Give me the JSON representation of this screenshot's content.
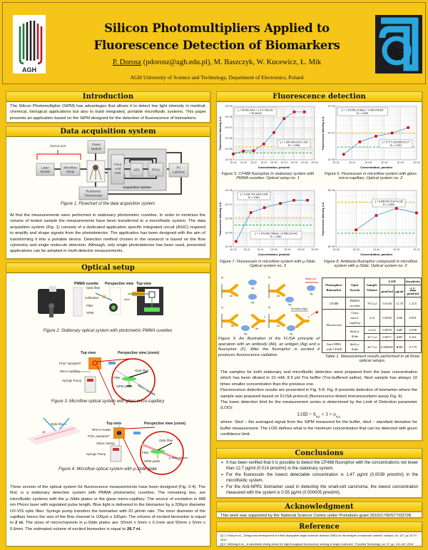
{
  "header": {
    "title_line1": "Silicon Photomultipliers Applied to",
    "title_line2": "Fluorescence Detection of Biomarkers",
    "author_main": "P. Dorosz",
    "authors_rest": " (pdorosz@agh.edu.pl), M. Baszczyk, W. Kucewicz, Ł. Mik",
    "affiliation": "AGH University of Science and Technology, Department of Electronics, Poland",
    "logo_left_text": "AGH"
  },
  "colors": {
    "background": "#f3c316",
    "section_header": "#f5c518",
    "threshold_orange": "#f5b000",
    "threshold_green": "#2fb34a",
    "points": "#e00000"
  },
  "introduction": {
    "title": "Introduction",
    "text": "The Silicon Photomultiplier (SiPM) has advantages that allows it to detect low light intensity in medical, chemical, biological applications but also to build integrated, portable microfluidic systems. This paper presents an application based on the SiPM designed for the detection of fluorescence of biomarkers."
  },
  "daq": {
    "title": "Data acquisition system",
    "fig": {
      "optical_part": "Optical part",
      "laser": [
        "Laser",
        "Module"
      ],
      "microflow": [
        "Microflow",
        "Setup"
      ],
      "power": [
        "Power",
        "Module"
      ],
      "thermo": [
        "Resistance",
        "Thermometer"
      ],
      "asic": [
        "Front",
        "-end",
        "ASIC"
      ],
      "adc": "ADC",
      "fpga": "FPGA",
      "pc": [
        "PC",
        "LabView"
      ],
      "acq": "Acquisition System"
    },
    "caption": "Figure 1. Flowchart of the data acquisition system",
    "text": "At first the measurements were performed in stationary photometric cuvettes. In order to minimize the volume of tested sample the measurements have been transferred to a microfluidic system. The data acquisition system (Fig. 1) consists of a dedicated application specific integrated circuit (ASIC) required to amplify and shape signals from the photodetector. The application has been designed with the aim of transforming it into a portable device. Detection method chosen in the research is based on the flow cytometry and single molecule detection. Although, only single photodetector has been used, presented applications can be adopted in multi-detector measurements."
  },
  "optical": {
    "title": "Optical setup",
    "fig2": {
      "pmma": "PMMA cuvette",
      "persp": "Perspective view",
      "top": "Top view",
      "fiber": "Optic fiber",
      "collimator": "Collimator",
      "filter": "Filter",
      "sipm": "SiPM",
      "mm": "5mm",
      "caption": "Figure 2. Stationary optical system with photometric PMMA cuvettes"
    },
    "fig3": {
      "top": "Top view",
      "persp": "Perspective view (zoom)",
      "pcb": "PCB \"sandwich\"",
      "capillary": "Micro-capillary",
      "pump": "Syringe Pump",
      "fiber": "Optic fiber",
      "filter": "Filter",
      "sipm": "SiPM pixels",
      "capillary2": "Micro-capillary",
      "caption": "Figure 3. Microflow optical system with glass micro-capillary"
    },
    "fig4": {
      "fibers": "Optic fibers",
      "angle": "45°",
      "top": "Top view",
      "persp": "Perspective view (zoom)",
      "holder": "RPH-2 Holder",
      "pcb": "PCB „sandwich\"",
      "tubing": "Silicon tubing",
      "pump": "Syringe Pump",
      "fiber": "Optic fiber",
      "filter": "Filter",
      "sipm": "SiPM pixels",
      "channel": "µ-Slide channel",
      "caption": "Figure 4. Microflow optical system with µ-Slide plate"
    },
    "text_a": "Three version of the optical system for fluorescence measurements have been designed (Fig. 2-4). The first, is a stationary detection system with PMMA photometric cuvettes. The remaining two, are microfluidic systems with the µ–Slide plates or the glass micro-capillary. The source of excitation is 488 nm Phoxx laser with regulated pulse length. Blue light is delivered to the biomarker by a 200µm diameter UV-VIS optic fiber. Syringe pump transfers the biomarker with 20 µl/min rate. The inner diameter of the capillary hence the size of the flow channel is 100µm x 100µm. The volume of excited biomarker is equal to ",
    "text_b": "2 nl.",
    "text_c": " The sizes of microchannels in µ-Slide plates are: 50mm x 5mm x 0.1mm and 50mm x 5mm x 0.6mm. The estimated volume of excited biomarker is equal to ",
    "text_d": "26.7 nl."
  },
  "fluorescence": {
    "title": "Fluorescence detection",
    "captions": [
      "Figure 5. CF488 fluorophor in stationary system with PMMA cuvettes. Optical setup no. 1",
      "Figure 6. Fluorescein in microflow system with glass micro-capillary. Optical system no. 2",
      "Figure 7. Fluorescein in microflow system with µ-Slide. Optical system no. 3",
      "Figure 8. Antibody-fluorophor compound in microflow system with µ-Slide. Optical system no. 3"
    ],
    "fig9": {
      "a": "a)",
      "b": "b)",
      "c": "c)",
      "d": "d)",
      "ab": "Ab",
      "ag": "Ag",
      "f": "F",
      "wash": "Wash out",
      "excitation": "Excitation light",
      "caption": "Figure 9. An illustration of the FLISA principle of operation with an antibody (Ab), an antigen (Ag) and a fluorophor (F). After the fluorophor is excited it produces fluorescence radiation."
    },
    "table": {
      "headers": [
        "Fluorophor/ Biomarker",
        "Optic System",
        "Sample Volume",
        "LOD",
        "Sensitivity"
      ],
      "lod_sub": [
        "pmol/ml",
        "pg/ml"
      ],
      "sens_sub": [
        "A.U.",
        "pmol/ml"
      ],
      "rows": [
        [
          "CF488",
          "PMMA cuvettes",
          "78.5 µl",
          "0.0140",
          "12.70",
          "1.215"
        ],
        [
          "Fluorescein",
          "Glass micro-capillary",
          "2 nl",
          "0.0040",
          "1.51",
          "0.091"
        ],
        [
          "",
          "ibidi µ-Slide",
          "4.4 nl",
          "0.0039",
          "1.47",
          "0.298"
        ],
        [
          "",
          "",
          "26.7 nl",
          "0.0071",
          "2.67",
          "0.161"
        ],
        [
          "Anti-NPR1 with CF488",
          "ibidi µ-Slide",
          "26.7 nl",
          "0.000005",
          "0.55",
          "0.179"
        ]
      ],
      "caption": "Table 1. Measurement results performed in all three optical setups."
    },
    "text1": "The samples for both stationary and microfluidic detection were prepared from the base concentration which has been diluted in 10 mM, 8.5 pH Tris buffer (Tris-buffered saline). Next sample has always 10 times smaller concentration than the previous one.",
    "text2": "Fluorescence detection results are presented in Fig. 5-8. Fig. 8 presents detection of biomarker where the sample was prepared based on FLISA protocol (fluorescence-linked immunosorbent assay Fig. 9).",
    "text3": "The lower detection limit for the measurement series is determined by the Limit of Detection parameter (LOD):",
    "formula": "LOD = S",
    "formula_sub1": "buf",
    "formula_mid": " + 3 × σ",
    "formula_sub2": "buf",
    "text4": "where: Sbuf – the averaged signal from the SiPM measured for the buffer, σbuf – standard deviation for buffer measurement. The LOD defines what is the minimum concentration that can be detected with given confidence limit."
  },
  "conclusions": {
    "title": "Conclusions",
    "items": [
      "It has been verified that it is possible to detect the CF488 fluorophor with the concentrations not lower than 12.7 pg/ml (0.014 pmol/ml) in the stationary system.",
      "For the fluorescein the lowest detectable concentration is 1.47 pg/ml (0.0039 pmol/ml) in the microfluidic system.",
      "For the Anti-NPR1 biomarker used in detecting the small-cell carcinoma, the lowest concentration measured with the system is 0.55 pg/ml (0.000005 pmol/ml)."
    ]
  },
  "acknowledgment": {
    "title": "Acknowledgment",
    "text": "This work was supported by the National Science Centre under Preludium grant 2015/17/N/ST7/03728."
  },
  "reference": {
    "title": "Reference",
    "items": [
      "[1] J. Emory et al., „Design and development of a field-deployable single-molecule detector (SMD) for the analysis of molecular markers\" Analyst, vol. 137, pp. 87-97, 2012.",
      "[2] K. Methwig et al., „A nanofluidic mixing device for high-throughput fluorescence sensing of single molecules\", Procedia Technology, vol. 27, pp. 141-142, 2016."
    ]
  },
  "chart_data": [
    {
      "type": "scatter",
      "xlabel": "Concentration, pmol/ml",
      "ylabel": "Fluorescence Intensity, A.U.",
      "xscale": "log",
      "yscale": "log",
      "xlim": [
        0.0001,
        10000
      ],
      "ylim": [
        10000,
        1000000000
      ],
      "xticks": [
        "1E-04",
        "1E-03",
        "1E-02",
        "1E-01",
        "1E+00",
        "1E+01",
        "1E+02",
        "1E+03",
        "1E+04"
      ],
      "yticks": [
        "1E+04",
        "1E+05",
        "1E+06",
        "1E+07",
        "1E+08",
        "1E+09"
      ],
      "x": [
        0.0001,
        0.001,
        0.01,
        0.1,
        1,
        10,
        100,
        1000
      ],
      "y": [
        35000,
        65000,
        70000,
        300000,
        3500000,
        70000000,
        300000000,
        300000000
      ],
      "thresholds": {
        "orange": 160000,
        "green": 45000
      },
      "equations": [
        [
          "y = 89 581,49x2 + 1 471 090,22x",
          "+ 28 343,81"
        ],
        [
          "y = 1 654 046,014x^1,353",
          "R² = 0,998"
        ]
      ],
      "grid": true
    },
    {
      "type": "scatter",
      "xlabel": "Concentration, pmol/ml",
      "ylabel": "Fluorescence Intensity, A.U.",
      "xscale": "log",
      "yscale": "log",
      "xlim": [
        0.01,
        1000
      ],
      "ylim": [
        1000000,
        100000000
      ],
      "xticks": [
        "1E-02",
        "1E-01",
        "1E+00",
        "1E+01",
        "1E+02",
        "1E+03"
      ],
      "yticks": [
        "1E+06",
        "1E+07",
        "1E+08"
      ],
      "x": [
        0.03,
        0.3,
        3,
        30,
        300
      ],
      "y": [
        1600000,
        4700000,
        7600000,
        10000000,
        16000000
      ],
      "thresholds": {
        "orange": 10000000,
        "green": 3000000
      },
      "equations": [
        [
          "y = 1 205 551,114ln(x) + 5 980 078,967",
          "R² = 0,999"
        ],
        [
          "y = 5 777 216,955x^0,177",
          "R² = 0,992"
        ]
      ],
      "grid": true
    },
    {
      "type": "scatter",
      "xlabel": "Concentration, pmol/ml",
      "ylabel": "Fluorescence Intensity, A.U.",
      "xscale": "log",
      "yscale": "log",
      "xlim": [
        0.001,
        1000
      ],
      "ylim": [
        10000,
        100000000
      ],
      "xticks": [
        "1E-03",
        "1E-02",
        "1E-01",
        "1E+00",
        "1E+01",
        "1E+02",
        "1E+03"
      ],
      "yticks": [
        "1E+04",
        "1E+05",
        "1E+06",
        "1E+07",
        "1E+08"
      ],
      "x": [
        0.0016,
        0.02,
        0.2,
        3,
        30,
        300
      ],
      "y": [
        24000,
        2700000,
        6000000,
        12000000,
        20000000,
        20000000
      ],
      "thresholds": {
        "orange": 1200000,
        "green": 350000
      },
      "equations": [
        [
          "y = 9 034 724,143x^0,206",
          "R² = 0,981"
        ],
        [
          "y = 1 476 399,753ln(x) + 8 556 210,442",
          "R² = 0,987"
        ]
      ],
      "grid": true
    },
    {
      "type": "scatter",
      "xlabel": "Concentration, pmol/ml",
      "ylabel": "Fluorescence Intensity, A.U.",
      "xscale": "log",
      "yscale": "log",
      "xlim": [
        1e-06,
        0.01
      ],
      "ylim": [
        500000,
        5000000
      ],
      "xticks": [
        "1E-06",
        "1E-05",
        "1E-04",
        "1E-03",
        "1E-02"
      ],
      "yticks": [
        "5E+05",
        "5E+06"
      ],
      "x": [
        1e-05,
        0.0001,
        0.001,
        0.01
      ],
      "y": [
        1000000,
        1800000,
        2400000,
        2000000
      ],
      "thresholds": {
        "orange": 3100000,
        "green": 870000
      },
      "equations": [
        [
          "y = 8 685 492,514x^0,138",
          "R² = 0,959"
        ]
      ],
      "grid": true
    }
  ]
}
